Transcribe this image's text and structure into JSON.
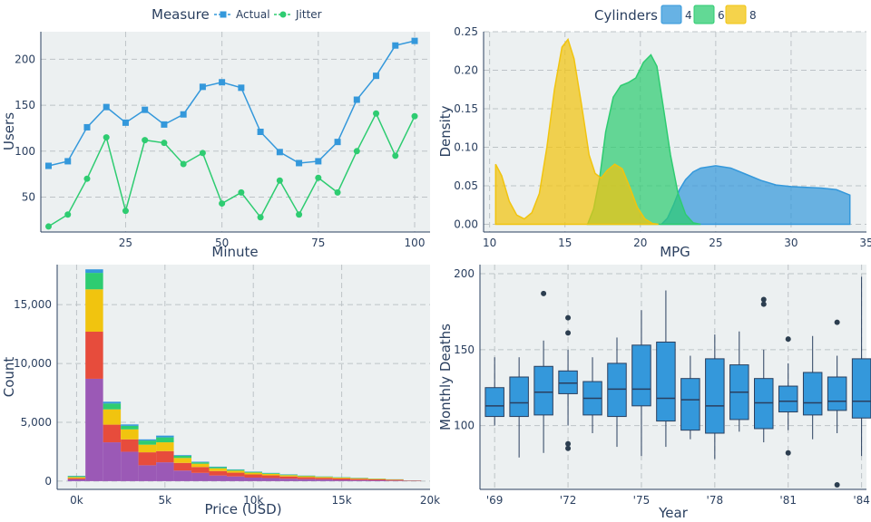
{
  "chart_data": [
    {
      "id": "users",
      "type": "line",
      "legend_title": "Measure",
      "xlabel": "Minute",
      "ylabel": "Users",
      "xlim": [
        3,
        104
      ],
      "ylim": [
        12,
        230
      ],
      "xticks": [
        25,
        50,
        75,
        100
      ],
      "yticks": [
        50,
        100,
        150,
        200
      ],
      "x": [
        5,
        10,
        15,
        20,
        25,
        30,
        35,
        40,
        45,
        50,
        55,
        60,
        65,
        70,
        75,
        80,
        85,
        90,
        95,
        100
      ],
      "series": [
        {
          "name": "Actual",
          "color": "#3498db",
          "marker": "square",
          "values": [
            84,
            89,
            126,
            148,
            131,
            145,
            129,
            140,
            170,
            175,
            169,
            121,
            99,
            87,
            89,
            110,
            156,
            182,
            215,
            220
          ]
        },
        {
          "name": "Jitter",
          "color": "#2ecc71",
          "marker": "circle",
          "values": [
            18,
            31,
            70,
            115,
            35,
            112,
            109,
            86,
            98,
            43,
            55,
            28,
            68,
            31,
            71,
            55,
            100,
            141,
            95,
            138
          ]
        }
      ]
    },
    {
      "id": "mpg",
      "type": "area",
      "legend_title": "Cylinders",
      "xlabel": "MPG",
      "ylabel": "Density",
      "xlim": [
        9.6,
        35
      ],
      "ylim": [
        -0.01,
        0.25
      ],
      "xticks": [
        10,
        15,
        20,
        25,
        30,
        35
      ],
      "yticks": [
        0,
        0.05,
        0.1,
        0.15,
        0.2,
        0.25
      ],
      "ytick_labels": [
        "0.00",
        "0.05",
        "0.10",
        "0.15",
        "0.20",
        "0.25"
      ],
      "series": [
        {
          "name": "4",
          "color": "#3498db",
          "points": [
            [
              21.4,
              0
            ],
            [
              21.8,
              0.008
            ],
            [
              22.2,
              0.025
            ],
            [
              22.6,
              0.045
            ],
            [
              23,
              0.058
            ],
            [
              23.5,
              0.068
            ],
            [
              24,
              0.073
            ],
            [
              25,
              0.076
            ],
            [
              26,
              0.073
            ],
            [
              27,
              0.065
            ],
            [
              28,
              0.057
            ],
            [
              29,
              0.051
            ],
            [
              30,
              0.049
            ],
            [
              31,
              0.048
            ],
            [
              32,
              0.047
            ],
            [
              33,
              0.045
            ],
            [
              33.9,
              0.038
            ],
            [
              33.9,
              0
            ]
          ]
        },
        {
          "name": "6",
          "color": "#2ecc71",
          "points": [
            [
              16.5,
              0
            ],
            [
              16.9,
              0.02
            ],
            [
              17.3,
              0.06
            ],
            [
              17.7,
              0.12
            ],
            [
              18.2,
              0.165
            ],
            [
              18.7,
              0.18
            ],
            [
              19.2,
              0.184
            ],
            [
              19.7,
              0.19
            ],
            [
              20.2,
              0.21
            ],
            [
              20.7,
              0.22
            ],
            [
              21.1,
              0.205
            ],
            [
              21.5,
              0.155
            ],
            [
              22,
              0.09
            ],
            [
              22.5,
              0.04
            ],
            [
              23,
              0.013
            ],
            [
              23.5,
              0.002
            ],
            [
              24,
              0
            ]
          ]
        },
        {
          "name": "8",
          "color": "#f1c40f",
          "points": [
            [
              10.4,
              0
            ],
            [
              10.4,
              0.078
            ],
            [
              10.8,
              0.063
            ],
            [
              11.3,
              0.03
            ],
            [
              11.8,
              0.012
            ],
            [
              12.3,
              0.007
            ],
            [
              12.8,
              0.015
            ],
            [
              13.3,
              0.04
            ],
            [
              13.8,
              0.1
            ],
            [
              14.3,
              0.175
            ],
            [
              14.8,
              0.23
            ],
            [
              15.2,
              0.24
            ],
            [
              15.6,
              0.215
            ],
            [
              16.1,
              0.155
            ],
            [
              16.6,
              0.09
            ],
            [
              17,
              0.066
            ],
            [
              17.4,
              0.06
            ],
            [
              17.8,
              0.07
            ],
            [
              18.3,
              0.078
            ],
            [
              18.8,
              0.072
            ],
            [
              19.3,
              0.048
            ],
            [
              19.8,
              0.022
            ],
            [
              20.3,
              0.007
            ],
            [
              20.8,
              0.001
            ],
            [
              21.2,
              0
            ]
          ]
        }
      ]
    },
    {
      "id": "price",
      "type": "bar",
      "stacked": true,
      "xlabel": "Price (USD)",
      "ylabel": "Count",
      "xlim": [
        -1100,
        20000
      ],
      "ylim": [
        -700,
        18400
      ],
      "xticks": [
        0,
        5000,
        10000,
        15000,
        20000
      ],
      "xtick_labels": [
        "0k",
        "5k",
        "10k",
        "15k",
        "20k"
      ],
      "yticks": [
        0,
        5000,
        10000,
        15000
      ],
      "ytick_labels": [
        "0",
        "5,000",
        "10,000",
        "15,000"
      ],
      "bins": [
        [
          -500,
          500
        ],
        [
          500,
          1500
        ],
        [
          1500,
          2500
        ],
        [
          2500,
          3500
        ],
        [
          3500,
          4500
        ],
        [
          4500,
          5500
        ],
        [
          5500,
          6500
        ],
        [
          6500,
          7500
        ],
        [
          7500,
          8500
        ],
        [
          8500,
          9500
        ],
        [
          9500,
          10500
        ],
        [
          10500,
          11500
        ],
        [
          11500,
          12500
        ],
        [
          12500,
          13500
        ],
        [
          13500,
          14500
        ],
        [
          14500,
          15500
        ],
        [
          15500,
          16500
        ],
        [
          16500,
          17500
        ],
        [
          17500,
          18500
        ],
        [
          18500,
          19500
        ]
      ],
      "series": [
        {
          "name": "Purple",
          "color": "#9b59b6",
          "values": [
            150,
            8700,
            3300,
            2500,
            1350,
            1600,
            900,
            700,
            480,
            400,
            300,
            260,
            210,
            170,
            140,
            110,
            90,
            70,
            50,
            30
          ]
        },
        {
          "name": "Red",
          "color": "#e74c3c",
          "values": [
            100,
            4000,
            1500,
            1050,
            1100,
            950,
            650,
            500,
            380,
            320,
            270,
            230,
            190,
            160,
            140,
            120,
            100,
            80,
            60,
            25
          ]
        },
        {
          "name": "Yellow",
          "color": "#f1c40f",
          "values": [
            100,
            3600,
            1300,
            850,
            650,
            750,
            420,
            280,
            230,
            170,
            150,
            130,
            110,
            90,
            80,
            70,
            60,
            45,
            30,
            10
          ]
        },
        {
          "name": "Green",
          "color": "#2ecc71",
          "values": [
            70,
            1400,
            500,
            300,
            350,
            420,
            180,
            120,
            100,
            80,
            70,
            60,
            50,
            40,
            35,
            30,
            25,
            20,
            15,
            5
          ]
        },
        {
          "name": "Blue",
          "color": "#3498db",
          "values": [
            30,
            300,
            150,
            120,
            100,
            150,
            60,
            50,
            40,
            30,
            25,
            20,
            20,
            15,
            10,
            10,
            10,
            5,
            5,
            0
          ]
        }
      ]
    },
    {
      "id": "deaths",
      "type": "box",
      "xlabel": "Year",
      "ylabel": "Monthly Deaths",
      "xlim": [
        -0.6,
        15.2
      ],
      "ylim": [
        58,
        206
      ],
      "xticks": [
        0,
        3,
        6,
        9,
        12,
        15
      ],
      "xtick_labels": [
        "'69",
        "'72",
        "'75",
        "'78",
        "'81",
        "'84"
      ],
      "yticks": [
        100,
        150,
        200
      ],
      "color": "#3498db",
      "boxes": [
        {
          "q1": 106,
          "median": 113,
          "q3": 125,
          "low": 100,
          "high": 145,
          "outliers": []
        },
        {
          "q1": 106,
          "median": 115,
          "q3": 132,
          "low": 79,
          "high": 145,
          "outliers": []
        },
        {
          "q1": 107,
          "median": 122,
          "q3": 139,
          "low": 82,
          "high": 156,
          "outliers": [
            187
          ]
        },
        {
          "q1": 121,
          "median": 128,
          "q3": 136,
          "low": 100,
          "high": 150,
          "outliers": [
            171,
            161,
            88,
            85
          ]
        },
        {
          "q1": 107,
          "median": 118,
          "q3": 129,
          "low": 95,
          "high": 145,
          "outliers": []
        },
        {
          "q1": 106,
          "median": 124,
          "q3": 141,
          "low": 86,
          "high": 158,
          "outliers": []
        },
        {
          "q1": 113,
          "median": 124,
          "q3": 153,
          "low": 80,
          "high": 176,
          "outliers": []
        },
        {
          "q1": 103,
          "median": 118,
          "q3": 155,
          "low": 86,
          "high": 189,
          "outliers": []
        },
        {
          "q1": 97,
          "median": 117,
          "q3": 131,
          "low": 91,
          "high": 146,
          "outliers": []
        },
        {
          "q1": 95,
          "median": 113,
          "q3": 144,
          "low": 78,
          "high": 160,
          "outliers": []
        },
        {
          "q1": 104,
          "median": 122,
          "q3": 140,
          "low": 96,
          "high": 162,
          "outliers": []
        },
        {
          "q1": 98,
          "median": 115,
          "q3": 131,
          "low": 89,
          "high": 150,
          "outliers": [
            183,
            180
          ]
        },
        {
          "q1": 109,
          "median": 116,
          "q3": 126,
          "low": 97,
          "high": 141,
          "outliers": [
            157,
            82
          ]
        },
        {
          "q1": 107,
          "median": 115,
          "q3": 135,
          "low": 91,
          "high": 159,
          "outliers": []
        },
        {
          "q1": 110,
          "median": 116,
          "q3": 132,
          "low": 95,
          "high": 146,
          "outliers": [
            168,
            61
          ]
        },
        {
          "q1": 105,
          "median": 116,
          "q3": 144,
          "low": 80,
          "high": 198,
          "outliers": []
        }
      ]
    }
  ]
}
